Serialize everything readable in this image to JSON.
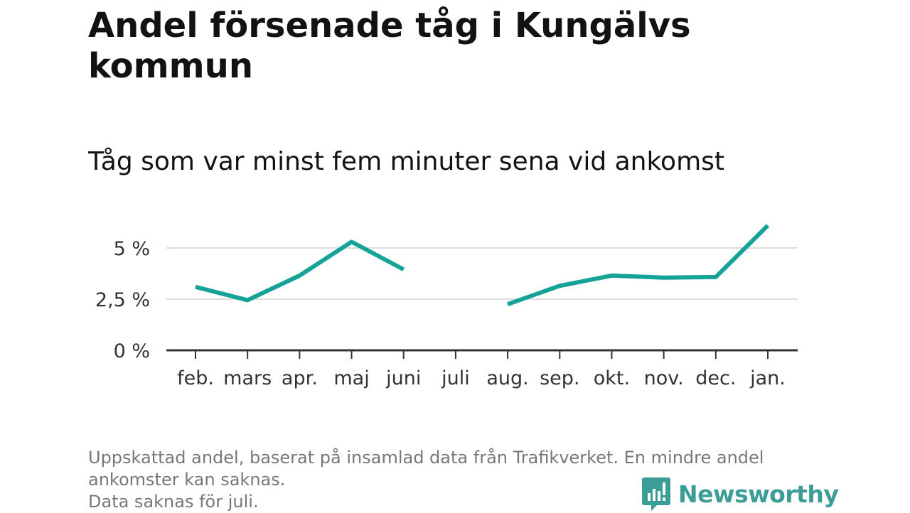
{
  "title": "Andel försenade tåg i Kungälvs kommun",
  "subtitle": "Tåg som var minst fem minuter sena vid ankomst",
  "footnote": [
    "Uppskattad andel, baserat på insamlad data från Trafikverket. En mindre andel",
    "ankomster kan saknas.",
    "Data saknas för juli."
  ],
  "logo": {
    "text": "Newsworthy"
  },
  "colors": {
    "line": "#15a397",
    "grid": "#dddddd",
    "axis": "#333333",
    "text": "#333333"
  },
  "chart_data": {
    "type": "line",
    "categories": [
      "feb.",
      "mars",
      "apr.",
      "maj",
      "juni",
      "juli",
      "aug.",
      "sep.",
      "okt.",
      "nov.",
      "dec.",
      "jan."
    ],
    "series": [
      {
        "values": [
          3.1,
          2.45,
          3.65,
          5.3,
          3.95,
          null,
          2.25,
          3.15,
          3.65,
          3.55,
          3.58,
          6.1
        ]
      }
    ],
    "yticks": [
      0,
      2.5,
      5
    ],
    "ytick_labels": [
      "0 %",
      "2,5 %",
      "5 %"
    ],
    "ylim": [
      0,
      6.5
    ],
    "grid": true,
    "legend": false
  }
}
